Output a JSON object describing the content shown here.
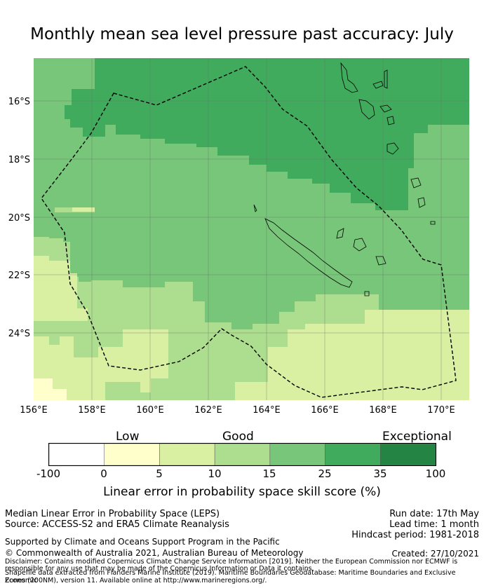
{
  "title": "Monthly mean sea level pressure past accuracy: July",
  "map": {
    "lon_labels": [
      "156°E",
      "158°E",
      "160°E",
      "162°E",
      "164°E",
      "166°E",
      "168°E",
      "170°E"
    ],
    "lat_labels": [
      "16°S",
      "18°S",
      "20°S",
      "22°S",
      "24°S"
    ],
    "boundary_style": "dashed",
    "grid": true
  },
  "colorbar": {
    "categories": [
      "Low",
      "Good",
      "Exceptional"
    ],
    "ticks": [
      "-100",
      "0",
      "5",
      "10",
      "15",
      "25",
      "35",
      "100"
    ],
    "colors": [
      "#ffffff",
      "#ffffcc",
      "#d9f0a3",
      "#addd8e",
      "#78c679",
      "#41ab5d",
      "#238443"
    ],
    "label": "Linear error in probability space skill score (%)"
  },
  "info": {
    "line1": "Median Linear Error in Probability Space (LEPS)",
    "line2": "Source: ACCESS-S2 and ERA5 Climate Reanalysis",
    "run_date": "Run date: 17th May",
    "lead_time": "Lead time: 1 month",
    "hindcast": "Hindcast period: 1981-2018",
    "supported": "Supported by Climate and Oceans Support Program in the Pacific",
    "copyright": "© Commonwealth of Australia 2021, Australian Bureau of Meteorology",
    "created": "Created: 27/10/2021",
    "disclaimer1": "Disclaimer: Contains modified Copernicus Climate Change Service Information [2019]. Neither the European Commission nor ECMWF is",
    "disclaimer2": "responsible for any use that may be made of the Copernicus Information or Data it contains.",
    "disclaimer3": "Shapefile data extracted from Flanders Marine Institute (2019). Maritime Boundaries Geodatabase: Maritime Boundaries and Exclusive Economic",
    "disclaimer4": "Zones (200NM), version 11. Available online at http://www.marineregions.org/."
  }
}
